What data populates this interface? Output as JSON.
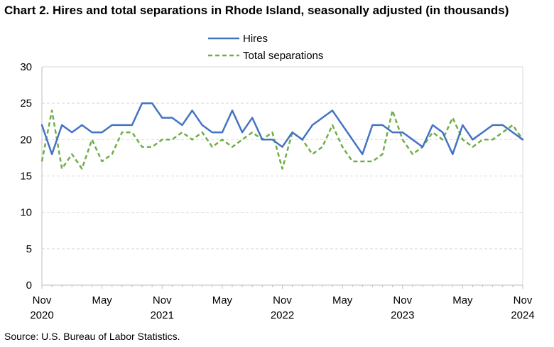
{
  "title": "Chart 2. Hires and total separations in Rhode Island, seasonally adjusted (in thousands)",
  "source": "Source: U.S. Bureau of Labor Statistics.",
  "colors": {
    "hires": "#4472c4",
    "separations": "#70ad47",
    "grid": "#d9d9d9",
    "axis": "#bfbfbf"
  },
  "chart_data": {
    "type": "line",
    "title": "Chart 2. Hires and total separations in Rhode Island, seasonally adjusted (in thousands)",
    "xlabel": "",
    "ylabel": "",
    "ylim": [
      0,
      30
    ],
    "yticks": [
      0,
      5,
      10,
      15,
      20,
      25,
      30
    ],
    "grid": true,
    "legend_position": "top-center",
    "x_start": "Nov 2020",
    "x_end": "Nov 2024",
    "month_count": 49,
    "x_tick_labels": [
      {
        "index": 0,
        "month": "Nov",
        "year": "2020"
      },
      {
        "index": 6,
        "month": "May",
        "year": ""
      },
      {
        "index": 12,
        "month": "Nov",
        "year": "2021"
      },
      {
        "index": 18,
        "month": "May",
        "year": ""
      },
      {
        "index": 24,
        "month": "Nov",
        "year": "2022"
      },
      {
        "index": 30,
        "month": "May",
        "year": ""
      },
      {
        "index": 36,
        "month": "Nov",
        "year": "2023"
      },
      {
        "index": 42,
        "month": "May",
        "year": ""
      },
      {
        "index": 48,
        "month": "Nov",
        "year": "2024"
      }
    ],
    "series": [
      {
        "name": "Hires",
        "style": "solid",
        "values": [
          22,
          18,
          22,
          21,
          22,
          21,
          21,
          22,
          22,
          22,
          25,
          25,
          23,
          23,
          22,
          24,
          22,
          21,
          21,
          24,
          21,
          23,
          20,
          20,
          19,
          21,
          20,
          22,
          23,
          24,
          22,
          20,
          18,
          22,
          22,
          21,
          21,
          20,
          19,
          22,
          21,
          18,
          22,
          20,
          21,
          22,
          22,
          21,
          20
        ]
      },
      {
        "name": "Total separations",
        "style": "dashed",
        "values": [
          17,
          24,
          16,
          18,
          16,
          20,
          17,
          18,
          21,
          21,
          19,
          19,
          20,
          20,
          21,
          20,
          21,
          19,
          20,
          19,
          20,
          21,
          20,
          21,
          16,
          21,
          20,
          18,
          19,
          22,
          19,
          17,
          17,
          17,
          18,
          24,
          20,
          18,
          19,
          21,
          20,
          23,
          20,
          19,
          20,
          20,
          21,
          22,
          20
        ]
      }
    ]
  }
}
